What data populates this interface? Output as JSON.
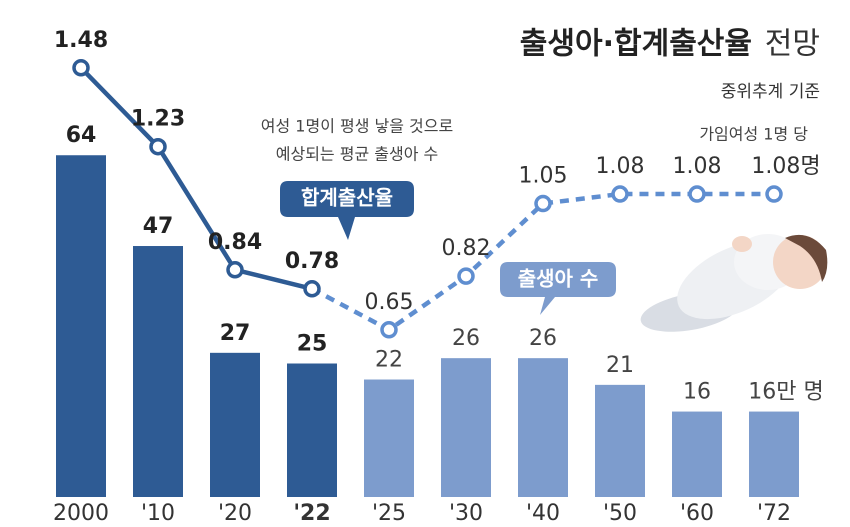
{
  "chart_data": {
    "type": "bar",
    "title": "출생아·합계출산율",
    "title_suffix": "전망",
    "subtitle": "중위추계 기준",
    "annotations": [
      "여성 1명이 평생 낳을 것으로",
      "예상되는 평균 출생아 수",
      "가임여성 1명 당"
    ],
    "categories": [
      "2000",
      "'10",
      "'20",
      "'22",
      "'25",
      "'30",
      "'40",
      "'50",
      "'60",
      "'72"
    ],
    "series": [
      {
        "name": "출생아 수",
        "type": "bar",
        "colors": [
          "#2e5b94",
          "#2e5b94",
          "#2e5b94",
          "#2e5b94",
          "#7d9ccd",
          "#7d9ccd",
          "#7d9ccd",
          "#7d9ccd",
          "#7d9ccd",
          "#7d9ccd"
        ],
        "values": [
          64,
          47,
          27,
          25,
          22,
          26,
          26,
          21,
          16,
          16
        ],
        "value_labels": [
          "64",
          "47",
          "27",
          "25",
          "22",
          "26",
          "26",
          "21",
          "16",
          "16만 명"
        ]
      },
      {
        "name": "합계출산율",
        "type": "line",
        "axis": "y2",
        "colors": [
          "#2e5b94",
          "#2e5b94",
          "#2e5b94",
          "#2e5b94",
          "#5f8ed0",
          "#5f8ed0",
          "#5f8ed0",
          "#5f8ed0",
          "#5f8ed0",
          "#5f8ed0"
        ],
        "values": [
          1.48,
          1.23,
          0.84,
          0.78,
          0.65,
          0.82,
          1.05,
          1.08,
          1.08,
          1.08
        ],
        "value_labels": [
          "1.48",
          "1.23",
          "0.84",
          "0.78",
          "0.65",
          "0.82",
          "1.05",
          "1.08",
          "1.08",
          "1.08명"
        ]
      }
    ]
  }
}
